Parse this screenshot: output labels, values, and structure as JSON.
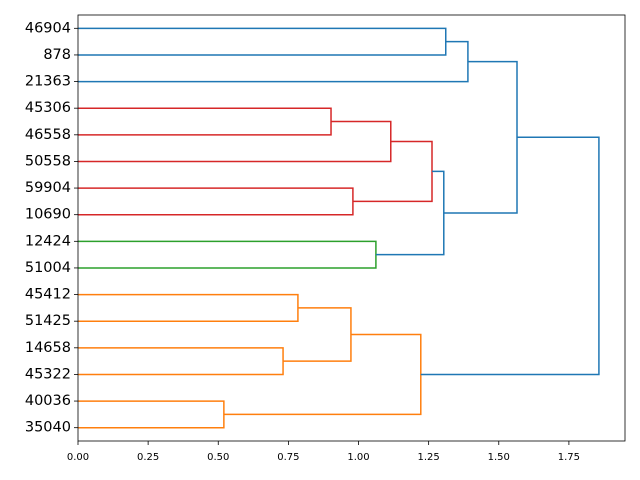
{
  "chart_data": {
    "type": "dendrogram",
    "orientation": "left",
    "leaves": [
      "46904",
      "878",
      "21363",
      "45306",
      "46558",
      "50558",
      "59904",
      "10690",
      "12424",
      "51004",
      "45412",
      "51425",
      "14658",
      "45322",
      "40036",
      "35040"
    ],
    "links": [
      {
        "children": [
          0,
          1
        ],
        "height": 1.311,
        "color": "#1f77b4"
      },
      {
        "children": [
          16,
          2
        ],
        "height": 1.39,
        "color": "#1f77b4"
      },
      {
        "children": [
          3,
          4
        ],
        "height": 0.902,
        "color": "#d62728"
      },
      {
        "children": [
          18,
          5
        ],
        "height": 1.115,
        "color": "#d62728"
      },
      {
        "children": [
          6,
          7
        ],
        "height": 0.98,
        "color": "#d62728"
      },
      {
        "children": [
          19,
          20
        ],
        "height": 1.262,
        "color": "#d62728"
      },
      {
        "children": [
          8,
          9
        ],
        "height": 1.062,
        "color": "#2ca02c"
      },
      {
        "children": [
          21,
          22
        ],
        "height": 1.304,
        "color": "#1f77b4"
      },
      {
        "children": [
          17,
          23
        ],
        "height": 1.565,
        "color": "#1f77b4"
      },
      {
        "children": [
          10,
          11
        ],
        "height": 0.784,
        "color": "#ff7f0e"
      },
      {
        "children": [
          12,
          13
        ],
        "height": 0.731,
        "color": "#ff7f0e"
      },
      {
        "children": [
          25,
          26
        ],
        "height": 0.973,
        "color": "#ff7f0e"
      },
      {
        "children": [
          14,
          15
        ],
        "height": 0.52,
        "color": "#ff7f0e"
      },
      {
        "children": [
          27,
          28
        ],
        "height": 1.222,
        "color": "#ff7f0e"
      },
      {
        "children": [
          24,
          29
        ],
        "height": 1.857,
        "color": "#1f77b4"
      }
    ],
    "xlim": [
      0,
      1.95
    ],
    "xticks": [
      {
        "value": 0,
        "label": "0.00"
      },
      {
        "value": 0.25,
        "label": "0.25"
      },
      {
        "value": 0.5,
        "label": "0.50"
      },
      {
        "value": 0.75,
        "label": "0.75"
      },
      {
        "value": 1,
        "label": "1.00"
      },
      {
        "value": 1.25,
        "label": "1.25"
      },
      {
        "value": 1.5,
        "label": "1.50"
      },
      {
        "value": 1.75,
        "label": "1.75"
      }
    ]
  }
}
